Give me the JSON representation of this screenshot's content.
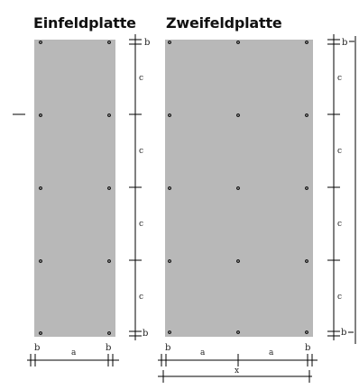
{
  "titles": {
    "single": "Einfeldplatte",
    "double": "Zweifeldplatte"
  },
  "dims": {
    "a": "a",
    "b": "b",
    "c": "c",
    "x": "x"
  },
  "colors": {
    "plate": "#b8b8b8",
    "line": "#000000",
    "anchor": "#000000"
  }
}
